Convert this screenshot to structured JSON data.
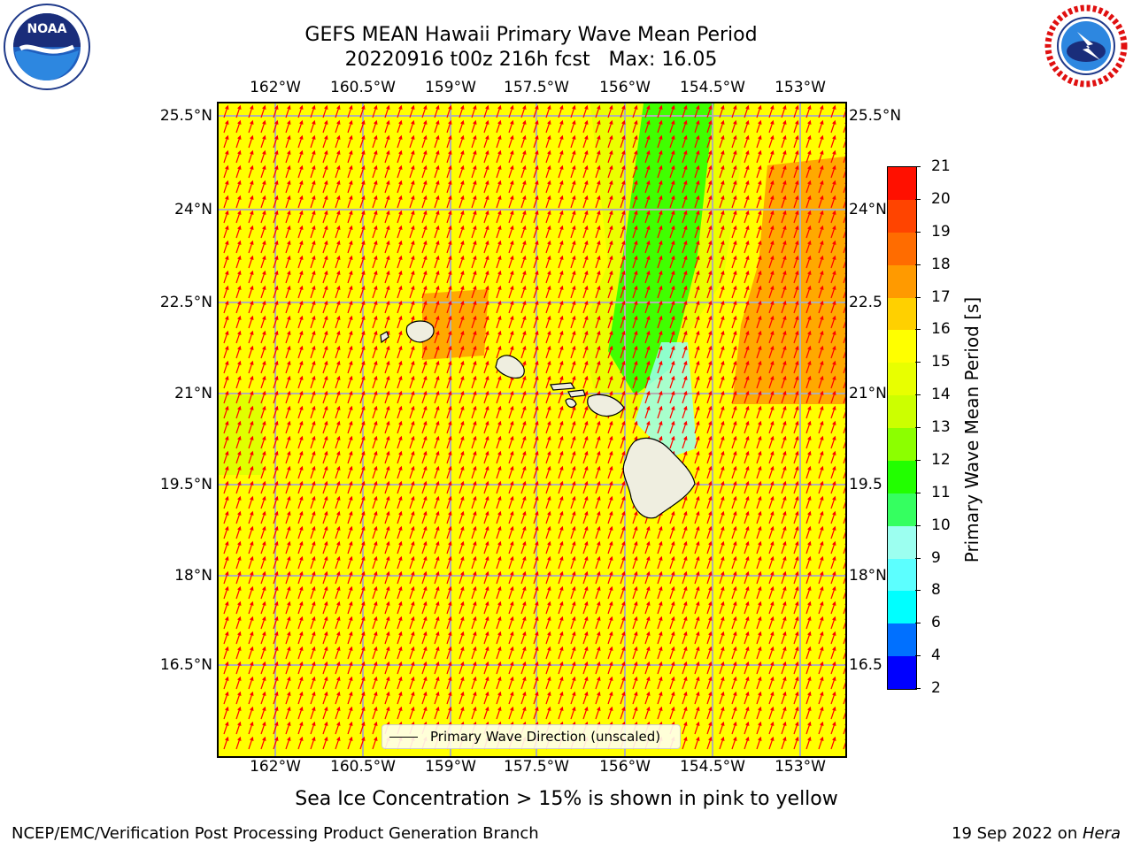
{
  "title": {
    "line1": "GEFS MEAN Hawaii Primary Wave Mean Period",
    "line2": "20220916 t00z 216h fcst   Max: 16.05"
  },
  "logos": {
    "noaa": {
      "icon": "noaa-logo",
      "text": "NOAA",
      "ring_text": "NATIONAL OCEANIC AND ATMOSPHERIC ADMINISTRATION · U.S. DEPARTMENT OF COMMERCE"
    },
    "nws": {
      "icon": "nws-logo",
      "ring_text": "NATIONAL WEATHER SERVICE"
    }
  },
  "map": {
    "lon_ticks": [
      "162°W",
      "160.5°W",
      "159°W",
      "157.5°W",
      "156°W",
      "154.5°W",
      "153°W"
    ],
    "lat_ticks": [
      "25.5°N",
      "24°N",
      "22.5°N",
      "21°N",
      "19.5°N",
      "18°N",
      "16.5°N"
    ],
    "lat_ticks_right": [
      "25.5°N",
      "24°N",
      "22.5",
      "21°N",
      "19.5",
      "18°N",
      "16.5"
    ],
    "legend_label": "Primary Wave Direction (unscaled)",
    "background_color": "#ffff00",
    "grid_color": "#b0b0b0",
    "arrow_color": "#ff0000",
    "land_color": "#efeee0"
  },
  "colorbar": {
    "label": "Primary Wave Mean Period [s]",
    "ticks": [
      "2",
      "4",
      "6",
      "8",
      "9",
      "10",
      "11",
      "12",
      "13",
      "14",
      "15",
      "16",
      "17",
      "18",
      "19",
      "20",
      "21"
    ],
    "colors": [
      "#0000ff",
      "#0070ff",
      "#00ffff",
      "#5cffff",
      "#9cfff0",
      "#35ff60",
      "#22ff00",
      "#8cff00",
      "#ccff00",
      "#e8ff00",
      "#ffff00",
      "#ffd000",
      "#ff9a00",
      "#ff6c00",
      "#ff4400",
      "#ff1000"
    ]
  },
  "footnote": "Sea Ice Concentration > 15% is shown in pink to yellow",
  "credit": {
    "left": "NCEP/EMC/Verification Post Processing Product Generation Branch",
    "right_date": "19 Sep 2022 on ",
    "right_host": "Hera"
  }
}
